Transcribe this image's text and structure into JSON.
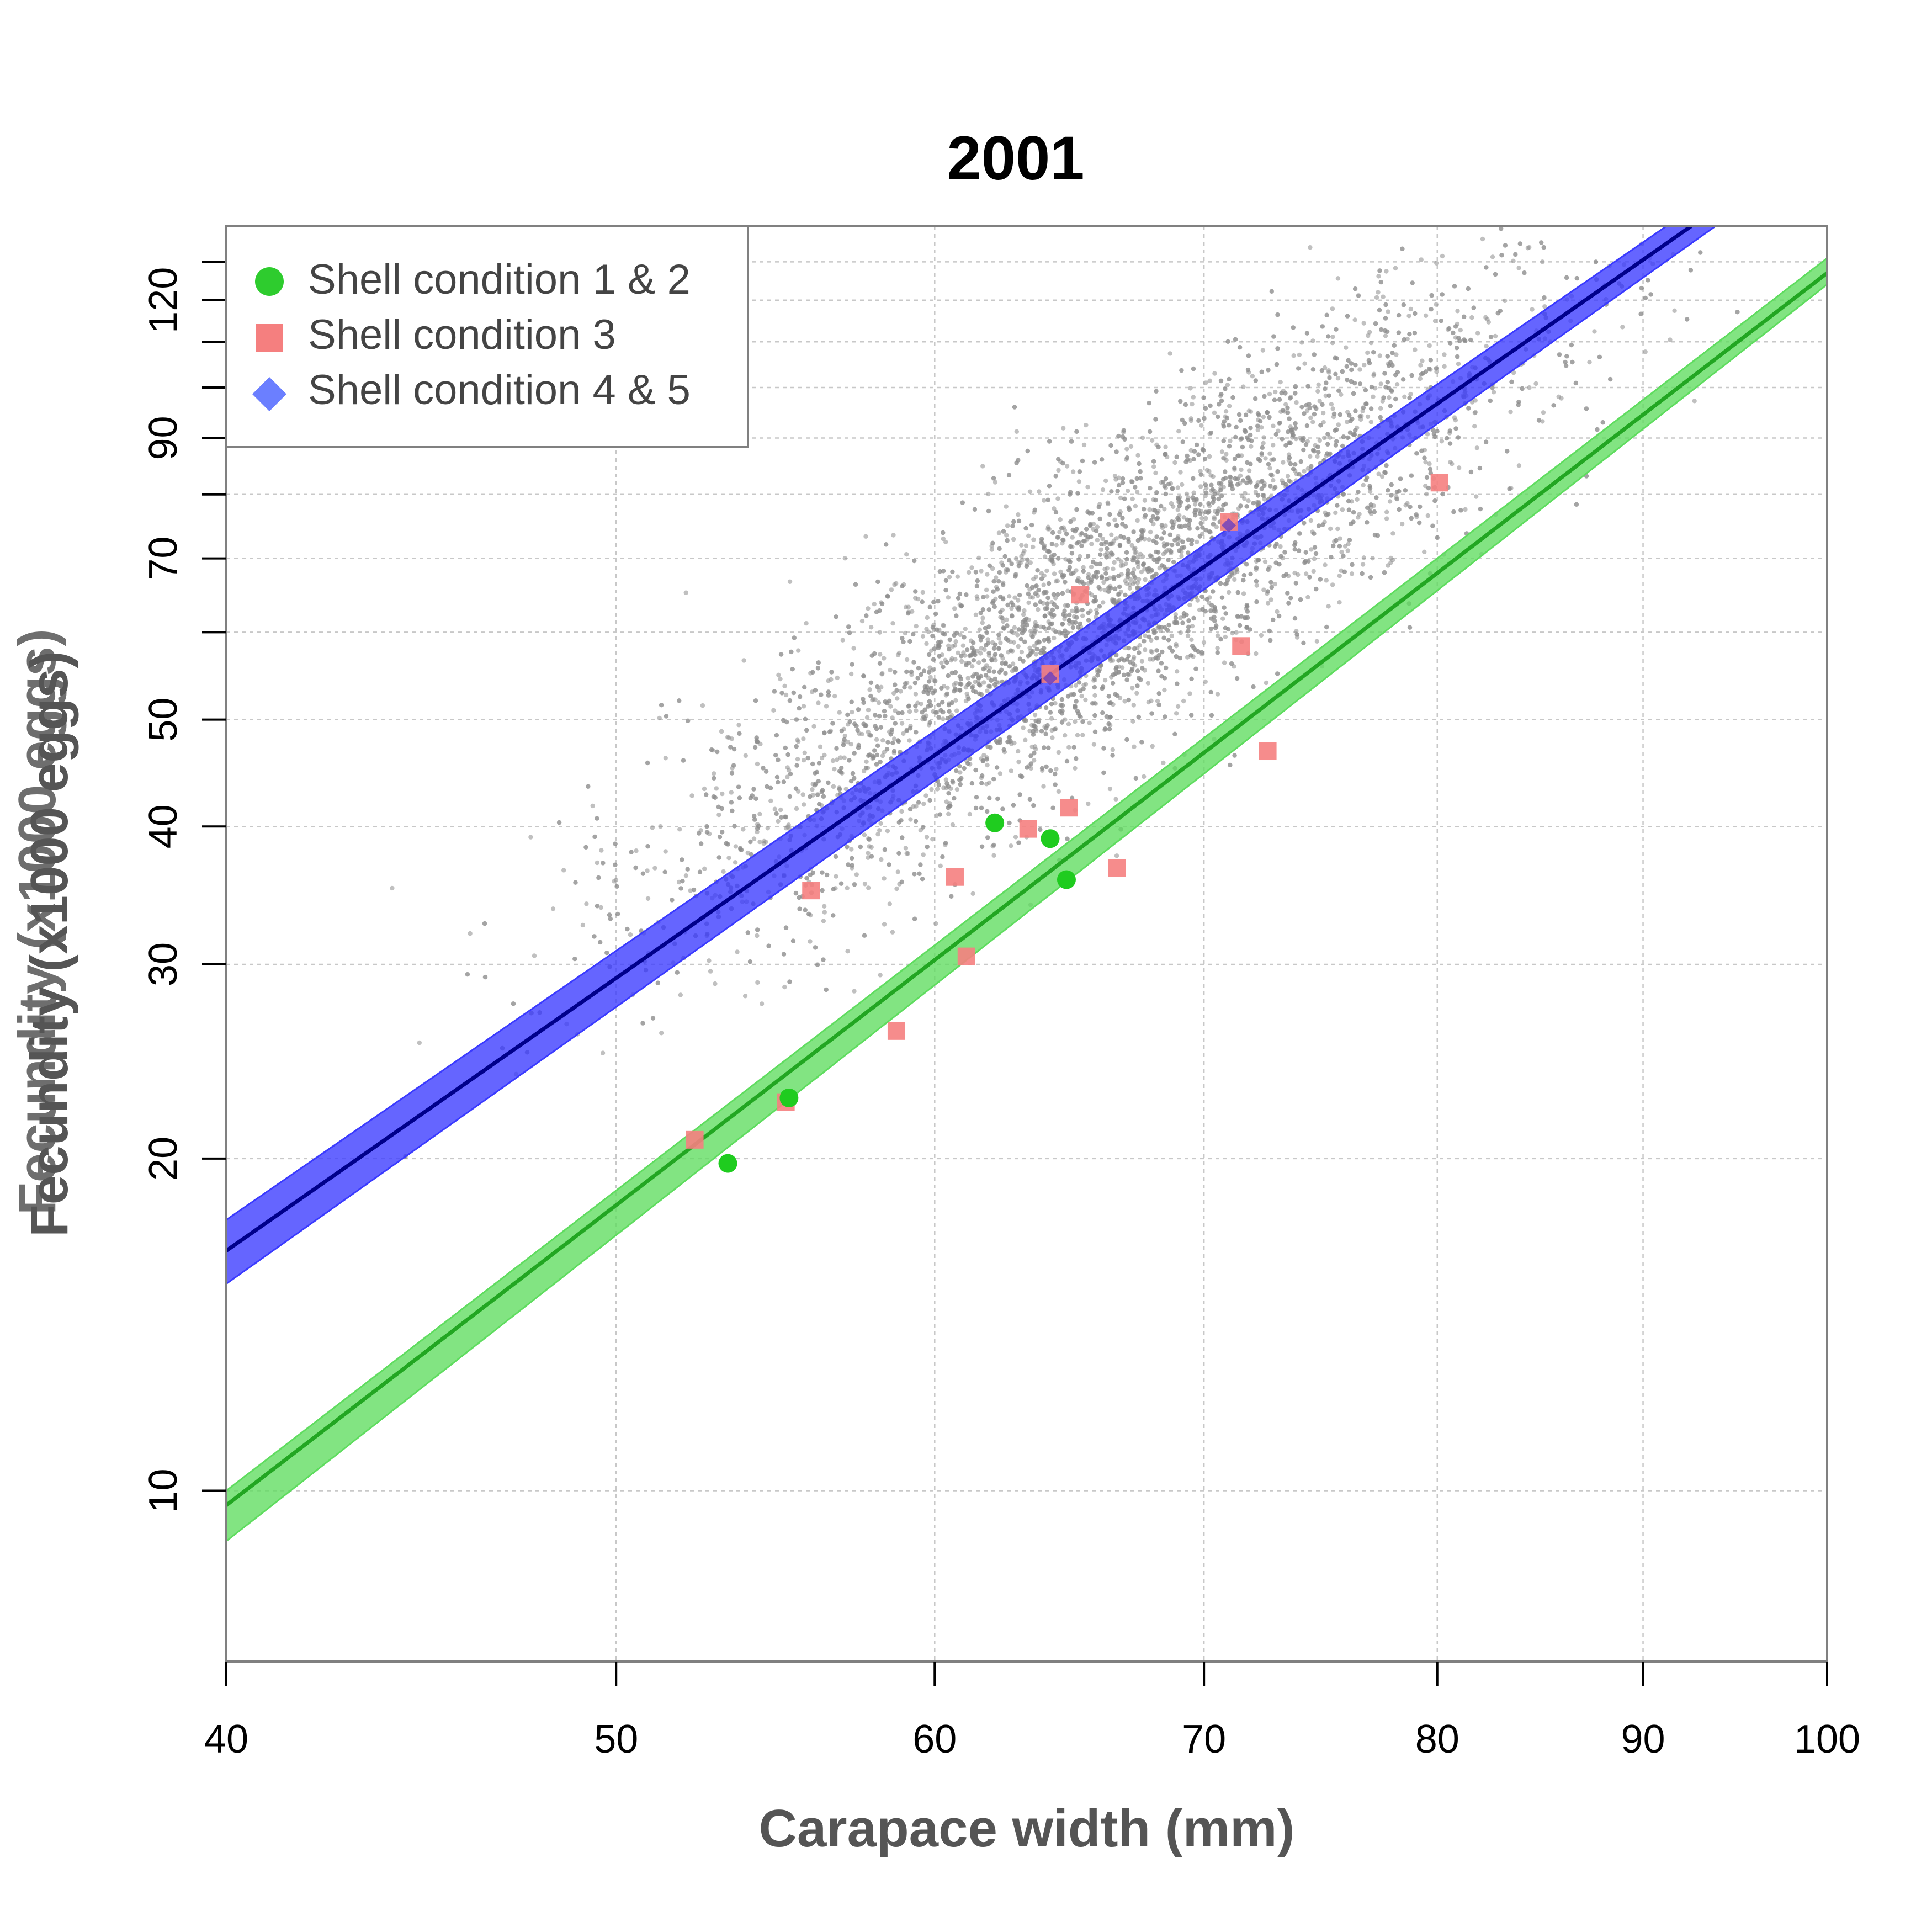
{
  "chart_data": {
    "type": "scatter",
    "title": "2001",
    "xlabel": "Carapace width (mm)",
    "ylabel": "Fecundity (x1000 eggs)",
    "ylabel_overlap": "Fecundity (x1000 eggs)",
    "x_scale": "log",
    "y_scale": "log",
    "xlim": [
      40,
      100
    ],
    "ylim": [
      7,
      140
    ],
    "x_ticks": [
      40,
      50,
      60,
      70,
      80,
      90,
      100
    ],
    "y_ticks_labeled": [
      10,
      20,
      30,
      40,
      50,
      70,
      90,
      120
    ],
    "y_ticks_minor": [
      60,
      80,
      100,
      110,
      130
    ],
    "grid": true,
    "legend": {
      "position": "top-left",
      "entries": [
        {
          "label": "Shell condition 1 & 2",
          "marker": "circle",
          "color": "#2ecc2e"
        },
        {
          "label": "Shell condition 3",
          "marker": "square",
          "color": "#f57f7f"
        },
        {
          "label": "Shell condition 4 & 5",
          "marker": "diamond",
          "color": "#6b7fff"
        }
      ]
    },
    "colors": {
      "background_points": "#8c8c8c",
      "green_line": "#22a622",
      "green_band": "#5fdc5f",
      "blue_line": "#00008b",
      "blue_band": "#3a3aff"
    },
    "background_cloud": {
      "n": 6000,
      "x_center": 66,
      "x_range": [
        40,
        95
      ],
      "y_fit": "y = 0.0045 * x^2.28",
      "y_scatter_sd_log": 0.16
    },
    "series": [
      {
        "name": "Shell condition 1 & 2",
        "kind": "points",
        "marker": "circle",
        "points": [
          [
            53.3,
            19.8
          ],
          [
            62.1,
            40.3
          ],
          [
            64.1,
            39.0
          ],
          [
            64.7,
            35.8
          ],
          [
            55.2,
            22.7
          ]
        ]
      },
      {
        "name": "Shell condition 3",
        "kind": "points",
        "marker": "square",
        "points": [
          [
            52.3,
            20.8
          ],
          [
            55.1,
            22.5
          ],
          [
            55.9,
            35.0
          ],
          [
            58.7,
            26.1
          ],
          [
            60.7,
            36.0
          ],
          [
            61.1,
            30.5
          ],
          [
            63.3,
            39.8
          ],
          [
            64.8,
            41.6
          ],
          [
            65.2,
            64.9
          ],
          [
            66.6,
            36.7
          ],
          [
            71.5,
            58.3
          ],
          [
            72.6,
            46.8
          ],
          [
            80.1,
            82.0
          ],
          [
            71.0,
            75.5
          ],
          [
            64.1,
            55.0
          ]
        ]
      },
      {
        "name": "Shell condition 4 & 5",
        "kind": "points",
        "marker": "diamond",
        "points": [
          [
            71.0,
            75.0
          ],
          [
            64.1,
            54.5
          ]
        ]
      },
      {
        "name": "Shell condition 1 & 2 fit",
        "kind": "fit",
        "line": [
          [
            40,
            9.7
          ],
          [
            100,
            127.0
          ]
        ],
        "band_lower": [
          [
            40,
            9.0
          ],
          [
            100,
            124.0
          ]
        ],
        "band_upper": [
          [
            40,
            10.0
          ],
          [
            100,
            131.0
          ]
        ]
      },
      {
        "name": "Shell condition 4 & 5 fit",
        "kind": "fit",
        "line": [
          [
            40,
            16.5
          ],
          [
            92.5,
            140.0
          ]
        ],
        "band_lower": [
          [
            40,
            15.4
          ],
          [
            93.8,
            140.0
          ]
        ],
        "band_upper": [
          [
            40,
            17.6
          ],
          [
            91.2,
            140.0
          ]
        ]
      }
    ]
  }
}
